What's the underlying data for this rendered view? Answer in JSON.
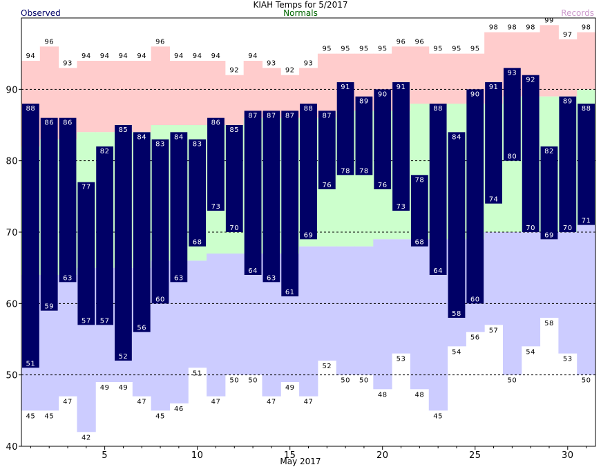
{
  "chart_data": {
    "type": "bar",
    "title": "KIAH Temps for 5/2017",
    "xlabel": "May 2017",
    "ylabel": "",
    "xlim": [
      0.5,
      31.5
    ],
    "ylim": [
      40,
      100
    ],
    "x_ticks": [
      5,
      10,
      15,
      20,
      25,
      30
    ],
    "y_ticks": [
      40,
      50,
      60,
      70,
      80,
      90
    ],
    "dashed_gridlines": [
      50,
      60,
      70,
      80,
      90
    ],
    "legend": {
      "position": "top",
      "entries": [
        {
          "label": "Observed",
          "color": "#000066",
          "placement": "top-left"
        },
        {
          "label": "Normals",
          "color": "#006600",
          "placement": "top-center"
        },
        {
          "label": "Records",
          "color": "#cc99cc",
          "placement": "top-right"
        }
      ]
    },
    "colors": {
      "observed": "#000066",
      "normal_band": "#ccffcc",
      "record_high_band": "#ffcccc",
      "record_low_band": "#ccccff",
      "observed_label": "#ffffff",
      "record_label": "#000000"
    },
    "days": [
      1,
      2,
      3,
      4,
      5,
      6,
      7,
      8,
      9,
      10,
      11,
      12,
      13,
      14,
      15,
      16,
      17,
      18,
      19,
      20,
      21,
      22,
      23,
      24,
      25,
      26,
      27,
      28,
      29,
      30,
      31
    ],
    "observed_high": [
      88,
      86,
      86,
      77,
      82,
      85,
      84,
      83,
      84,
      83,
      86,
      85,
      87,
      87,
      87,
      88,
      87,
      91,
      89,
      90,
      91,
      78,
      88,
      84,
      90,
      91,
      93,
      92,
      82,
      89,
      88
    ],
    "observed_low": [
      51,
      59,
      63,
      57,
      57,
      52,
      56,
      60,
      63,
      68,
      73,
      70,
      64,
      63,
      61,
      69,
      76,
      78,
      78,
      76,
      73,
      68,
      64,
      58,
      60,
      74,
      80,
      70,
      69,
      70,
      71
    ],
    "normal_high": [
      82,
      83,
      83,
      84,
      84,
      84,
      84,
      85,
      85,
      85,
      85,
      85,
      86,
      86,
      86,
      86,
      86,
      87,
      87,
      87,
      87,
      88,
      88,
      88,
      88,
      88,
      89,
      89,
      89,
      89,
      90
    ],
    "normal_low": [
      64,
      64,
      64,
      65,
      65,
      65,
      65,
      66,
      66,
      66,
      67,
      67,
      67,
      67,
      67,
      68,
      68,
      68,
      68,
      69,
      69,
      69,
      69,
      69,
      69,
      70,
      70,
      70,
      70,
      70,
      71
    ],
    "record_high": [
      94,
      96,
      93,
      94,
      94,
      94,
      94,
      96,
      94,
      94,
      94,
      92,
      94,
      93,
      92,
      93,
      95,
      95,
      95,
      95,
      96,
      96,
      95,
      95,
      95,
      98,
      98,
      98,
      99,
      97,
      98
    ],
    "record_low": [
      45,
      45,
      47,
      42,
      49,
      49,
      47,
      45,
      46,
      51,
      47,
      50,
      50,
      47,
      49,
      47,
      52,
      50,
      50,
      48,
      53,
      48,
      45,
      54,
      56,
      57,
      50,
      54,
      58,
      53,
      50
    ]
  }
}
